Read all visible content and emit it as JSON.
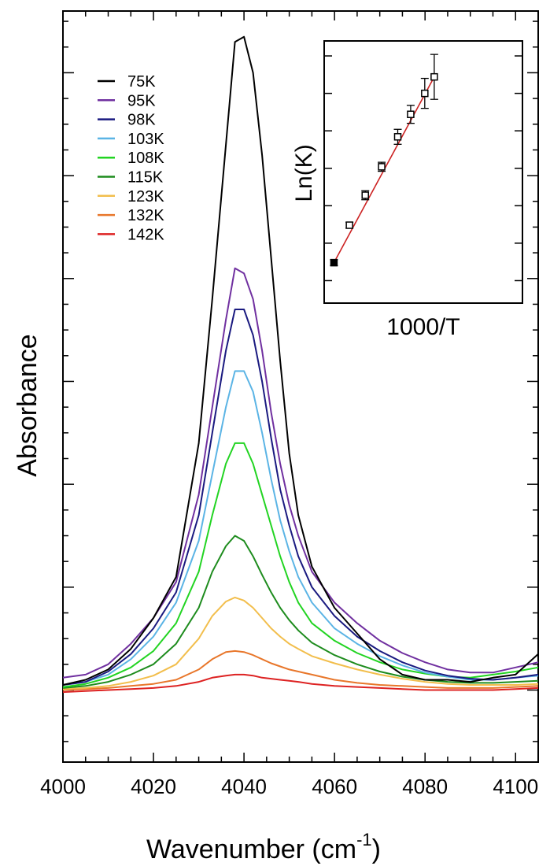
{
  "chart_data": [
    {
      "type": "line",
      "xlabel": "Wavenumber (cm",
      "xlabel_sup": "-1",
      "xlabel_close": ")",
      "ylabel": "Absorbance",
      "xlim": [
        4000,
        4105
      ],
      "ylim": [
        -0.7,
        6.6
      ],
      "x_ticks": [
        "4000",
        "4020",
        "4040",
        "4060",
        "4080",
        "4100"
      ],
      "x_tick_values": [
        4000,
        4020,
        4040,
        4060,
        4080,
        4100
      ],
      "legend_position": "top-left",
      "grid": false,
      "series": [
        {
          "name": "75K",
          "color": "#000000",
          "x": [
            4000,
            4005,
            4010,
            4015,
            4020,
            4025,
            4030,
            4033,
            4036,
            4038,
            4040,
            4042,
            4044,
            4046,
            4048,
            4050,
            4052,
            4055,
            4060,
            4065,
            4070,
            4075,
            4080,
            4085,
            4090,
            4095,
            4100,
            4105
          ],
          "y": [
            0.05,
            0.1,
            0.2,
            0.4,
            0.7,
            1.1,
            2.4,
            3.8,
            5.3,
            6.3,
            6.35,
            6.0,
            5.2,
            4.2,
            3.2,
            2.3,
            1.7,
            1.2,
            0.8,
            0.55,
            0.3,
            0.15,
            0.1,
            0.1,
            0.08,
            0.12,
            0.15,
            0.35
          ]
        },
        {
          "name": "95K",
          "color": "#7030a0",
          "x": [
            4000,
            4005,
            4010,
            4015,
            4020,
            4025,
            4030,
            4033,
            4036,
            4038,
            4040,
            4042,
            4044,
            4046,
            4048,
            4050,
            4052,
            4055,
            4060,
            4065,
            4070,
            4075,
            4080,
            4085,
            4090,
            4095,
            4100,
            4105
          ],
          "y": [
            0.12,
            0.15,
            0.25,
            0.45,
            0.7,
            1.05,
            1.9,
            2.75,
            3.6,
            4.1,
            4.05,
            3.8,
            3.3,
            2.7,
            2.2,
            1.8,
            1.5,
            1.15,
            0.85,
            0.65,
            0.48,
            0.36,
            0.27,
            0.2,
            0.17,
            0.17,
            0.22,
            0.27
          ]
        },
        {
          "name": "98K",
          "color": "#1a1a80",
          "x": [
            4000,
            4005,
            4010,
            4015,
            4020,
            4025,
            4030,
            4033,
            4036,
            4038,
            4040,
            4042,
            4044,
            4046,
            4048,
            4050,
            4052,
            4055,
            4060,
            4065,
            4070,
            4075,
            4080,
            4085,
            4090,
            4095,
            4100,
            4105
          ],
          "y": [
            0.05,
            0.08,
            0.18,
            0.35,
            0.6,
            0.95,
            1.7,
            2.5,
            3.3,
            3.7,
            3.7,
            3.45,
            3.0,
            2.45,
            1.95,
            1.6,
            1.3,
            1.0,
            0.72,
            0.52,
            0.38,
            0.27,
            0.19,
            0.14,
            0.11,
            0.1,
            0.12,
            0.15
          ]
        },
        {
          "name": "103K",
          "color": "#5bb4e5",
          "x": [
            4000,
            4005,
            4010,
            4015,
            4020,
            4025,
            4030,
            4033,
            4036,
            4038,
            4040,
            4042,
            4044,
            4046,
            4048,
            4050,
            4052,
            4055,
            4060,
            4065,
            4070,
            4075,
            4080,
            4085,
            4090,
            4095,
            4100,
            4105
          ],
          "y": [
            0.05,
            0.08,
            0.15,
            0.3,
            0.52,
            0.85,
            1.45,
            2.1,
            2.75,
            3.1,
            3.1,
            2.9,
            2.5,
            2.05,
            1.65,
            1.35,
            1.1,
            0.85,
            0.6,
            0.45,
            0.33,
            0.24,
            0.17,
            0.13,
            0.1,
            0.1,
            0.12,
            0.14
          ]
        },
        {
          "name": "108K",
          "color": "#22d422",
          "x": [
            4000,
            4005,
            4010,
            4015,
            4020,
            4025,
            4030,
            4033,
            4036,
            4038,
            4040,
            4042,
            4044,
            4046,
            4048,
            4050,
            4052,
            4055,
            4060,
            4065,
            4070,
            4075,
            4080,
            4085,
            4090,
            4095,
            4100,
            4105
          ],
          "y": [
            0.03,
            0.06,
            0.12,
            0.22,
            0.38,
            0.65,
            1.15,
            1.7,
            2.2,
            2.4,
            2.4,
            2.2,
            1.9,
            1.6,
            1.3,
            1.05,
            0.85,
            0.65,
            0.48,
            0.36,
            0.27,
            0.2,
            0.16,
            0.13,
            0.12,
            0.15,
            0.18,
            0.22
          ]
        },
        {
          "name": "115K",
          "color": "#1e8c1e",
          "x": [
            4000,
            4005,
            4010,
            4015,
            4020,
            4025,
            4030,
            4033,
            4036,
            4038,
            4040,
            4042,
            4044,
            4046,
            4048,
            4050,
            4052,
            4055,
            4060,
            4065,
            4070,
            4075,
            4080,
            4085,
            4090,
            4095,
            4100,
            4105
          ],
          "y": [
            0.02,
            0.04,
            0.08,
            0.15,
            0.25,
            0.45,
            0.8,
            1.15,
            1.4,
            1.5,
            1.45,
            1.3,
            1.12,
            0.95,
            0.8,
            0.68,
            0.58,
            0.46,
            0.34,
            0.25,
            0.18,
            0.13,
            0.1,
            0.08,
            0.07,
            0.07,
            0.08,
            0.09
          ]
        },
        {
          "name": "123K",
          "color": "#f2be4c",
          "x": [
            4000,
            4005,
            4010,
            4015,
            4020,
            4025,
            4030,
            4033,
            4036,
            4038,
            4040,
            4042,
            4044,
            4046,
            4048,
            4050,
            4052,
            4055,
            4060,
            4065,
            4070,
            4075,
            4080,
            4085,
            4090,
            4095,
            4100,
            4105
          ],
          "y": [
            0.01,
            0.02,
            0.04,
            0.08,
            0.14,
            0.25,
            0.5,
            0.72,
            0.86,
            0.9,
            0.87,
            0.8,
            0.7,
            0.6,
            0.52,
            0.45,
            0.4,
            0.33,
            0.26,
            0.2,
            0.15,
            0.11,
            0.08,
            0.06,
            0.05,
            0.05,
            0.05,
            0.06
          ]
        },
        {
          "name": "132K",
          "color": "#e8762a",
          "x": [
            4000,
            4005,
            4010,
            4015,
            4020,
            4025,
            4030,
            4033,
            4036,
            4038,
            4040,
            4042,
            4044,
            4046,
            4048,
            4050,
            4052,
            4055,
            4060,
            4065,
            4070,
            4075,
            4080,
            4085,
            4090,
            4095,
            4100,
            4105
          ],
          "y": [
            0.0,
            0.01,
            0.02,
            0.04,
            0.06,
            0.1,
            0.2,
            0.3,
            0.37,
            0.38,
            0.37,
            0.34,
            0.3,
            0.26,
            0.23,
            0.2,
            0.18,
            0.15,
            0.1,
            0.07,
            0.05,
            0.04,
            0.03,
            0.02,
            0.02,
            0.02,
            0.03,
            0.04
          ]
        },
        {
          "name": "142K",
          "color": "#dd2222",
          "x": [
            4000,
            4005,
            4010,
            4015,
            4020,
            4025,
            4030,
            4033,
            4036,
            4038,
            4040,
            4042,
            4044,
            4046,
            4048,
            4050,
            4052,
            4055,
            4060,
            4065,
            4070,
            4075,
            4080,
            4085,
            4090,
            4095,
            4100,
            4105
          ],
          "y": [
            -0.02,
            -0.01,
            0.0,
            0.01,
            0.02,
            0.04,
            0.08,
            0.12,
            0.14,
            0.15,
            0.15,
            0.14,
            0.12,
            0.11,
            0.1,
            0.09,
            0.08,
            0.06,
            0.04,
            0.03,
            0.02,
            0.01,
            0.0,
            0.0,
            0.0,
            0.0,
            0.01,
            0.02
          ]
        }
      ]
    },
    {
      "type": "scatter",
      "xlabel": "1000/T",
      "ylabel": "Ln(K)",
      "xlim": [
        6.7,
        13.6
      ],
      "ylim": [
        -0.15,
        1.6
      ],
      "legend_position": "none",
      "grid": false,
      "points": {
        "name": "",
        "x": [
          7.04,
          7.58,
          8.13,
          8.7,
          9.26,
          9.71,
          10.2,
          10.53
        ],
        "y": [
          0.12,
          0.37,
          0.57,
          0.76,
          0.96,
          1.11,
          1.25,
          1.36
        ],
        "err": [
          0.02,
          0.02,
          0.03,
          0.03,
          0.05,
          0.06,
          0.1,
          0.15
        ]
      },
      "fit": {
        "x": [
          7.04,
          10.53
        ],
        "y": [
          0.12,
          1.36
        ],
        "color": "#cc2222"
      }
    }
  ]
}
